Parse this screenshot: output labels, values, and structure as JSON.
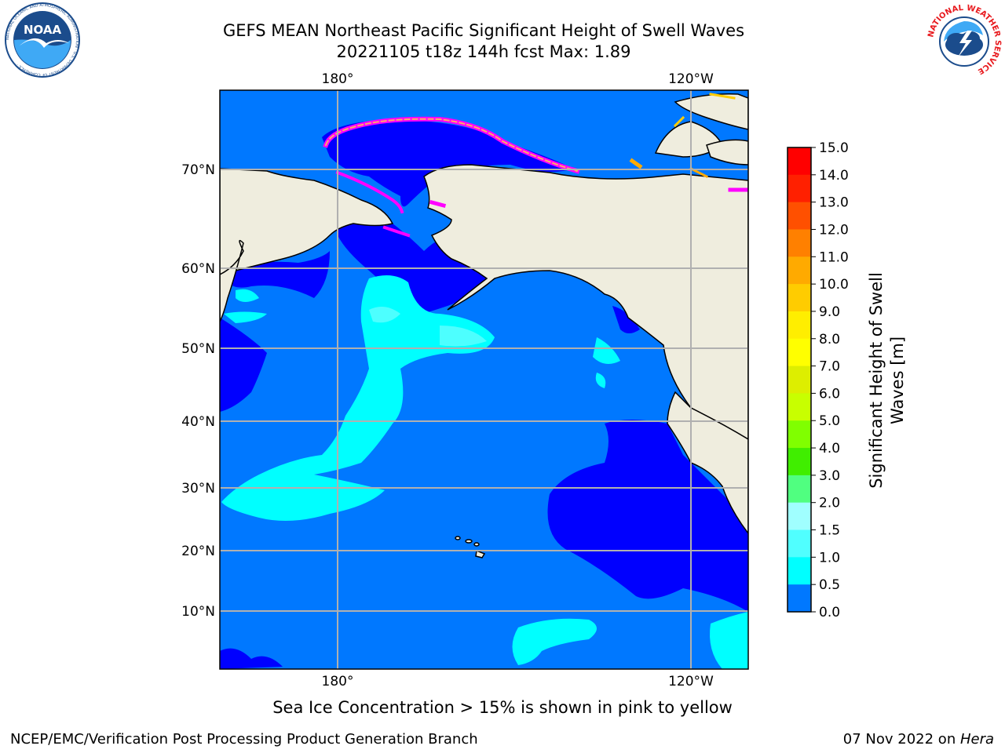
{
  "title": {
    "line1": "GEFS MEAN Northeast Pacific Significant Height of Swell Waves",
    "line2": "20221105 t18z 144h fcst   Max: 1.89"
  },
  "logos": {
    "left": {
      "icon": "noaa-logo",
      "text": "NOAA",
      "ring_text": "NATIONAL OCEANIC AND ATMOSPHERIC ADMINISTRATION · U.S. DEPARTMENT OF COMMERCE"
    },
    "right": {
      "icon": "nws-logo",
      "ring_text": "NATIONAL WEATHER SERVICE"
    }
  },
  "map": {
    "projection": "lat-lon",
    "lon_ticks": [
      "180°",
      "120°W"
    ],
    "lat_ticks": [
      "70°N",
      "60°N",
      "50°N",
      "40°N",
      "30°N",
      "20°N",
      "10°N"
    ],
    "colors": {
      "land": "#efedde",
      "ocean_0_05": "#0000ff",
      "ocean_05_10": "#0078ff",
      "ocean_10_15": "#00ffff",
      "ocean_15_20": "#4dffff",
      "sea_ice": "#ff00ff",
      "gridline": "#b0b0b0"
    }
  },
  "colorbar": {
    "title_line1": "Significant Height of Swell",
    "title_line2": "Waves [m]",
    "ticks": [
      "15.0",
      "14.0",
      "13.0",
      "12.0",
      "11.0",
      "10.0",
      "9.0",
      "8.0",
      "7.0",
      "6.0",
      "5.0",
      "4.0",
      "3.0",
      "2.0",
      "1.5",
      "1.0",
      "0.5",
      "0.0"
    ],
    "colors_top_to_bottom": [
      "#ff0000",
      "#ff2000",
      "#ff5000",
      "#ff8000",
      "#ffaa00",
      "#ffcc00",
      "#ffee00",
      "#ffff00",
      "#ddee00",
      "#c8ff00",
      "#80ff00",
      "#40ee00",
      "#00dd00",
      "#50ff80",
      "#a0ffff",
      "#50ffff",
      "#00ffff",
      "#0078ff",
      "#0000ff"
    ]
  },
  "note": "Sea Ice Concentration > 15% is shown in pink to yellow",
  "footer": {
    "left": "NCEP/EMC/Verification Post Processing Product Generation Branch",
    "right_date": "07 Nov 2022 on ",
    "right_host": "Hera"
  }
}
